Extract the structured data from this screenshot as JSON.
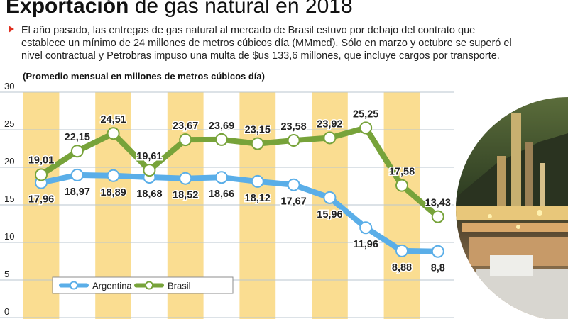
{
  "header": {
    "title_bold": "Exportación",
    "title_rest": " de gas natural en 2018",
    "description": "El año pasado, las entregas de gas natural al mercado de Brasil estuvo por debajo del contrato que establece un mínimo de 24 millones de metros cúbicos día (MMmcd). Sólo en marzo y octubre se superó el nivel contractual y Petrobras impuso una multa de $us 133,6 millones, que incluye cargos por transporte.",
    "unit_note": "(Promedio mensual en millones de metros cúbicos día)"
  },
  "colors": {
    "argentina": "#5aaee8",
    "brasil": "#77a33a",
    "column": "#f9d985",
    "bullet": "#e03020"
  },
  "chart_data": {
    "type": "line",
    "title": "Exportación de gas natural en 2018",
    "ylabel": "Promedio mensual en millones de metros cúbicos día",
    "ylim": [
      0,
      30
    ],
    "yticks": [
      0,
      5,
      10,
      15,
      20,
      25,
      30
    ],
    "legend_position": "bottom-left",
    "series": [
      {
        "name": "Argentina",
        "values": [
          17.96,
          18.97,
          18.89,
          18.68,
          18.52,
          18.66,
          18.12,
          17.67,
          15.96,
          11.96,
          8.88,
          8.8
        ],
        "labels": [
          "17,96",
          "18,97",
          "18,89",
          "18,68",
          "18,52",
          "18,66",
          "18,12",
          "17,67",
          "15,96",
          "11,96",
          "8,88",
          "8,8"
        ]
      },
      {
        "name": "Brasil",
        "values": [
          19.01,
          22.15,
          24.51,
          19.61,
          23.67,
          23.69,
          23.15,
          23.58,
          23.92,
          25.25,
          17.58,
          13.43
        ],
        "labels": [
          "19,01",
          "22,15",
          "24,51",
          "19,61",
          "23,67",
          "23,69",
          "23,15",
          "23,58",
          "23,92",
          "25,25",
          "17,58",
          "13,43"
        ]
      }
    ]
  }
}
